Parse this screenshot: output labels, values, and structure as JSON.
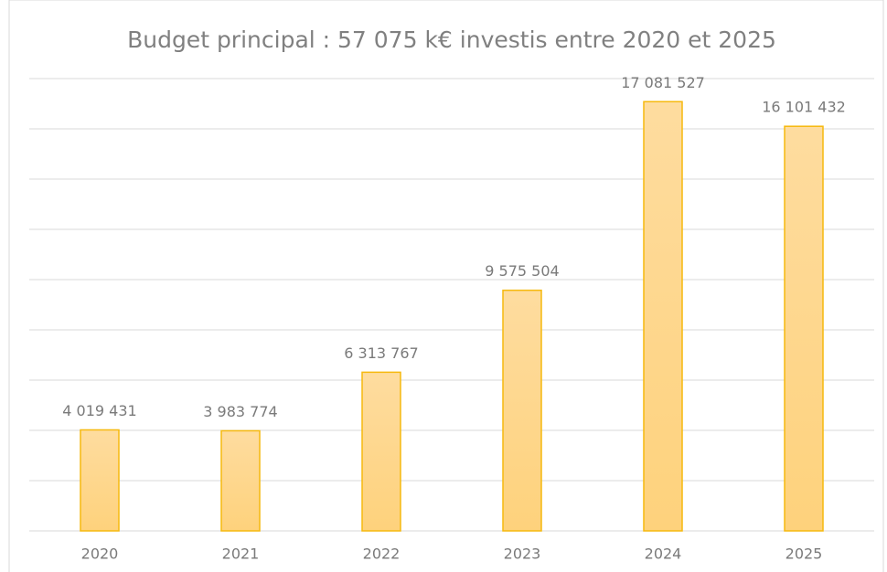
{
  "chart_data": {
    "type": "bar",
    "title": "Budget principal : 57 075 k€ investis entre 2020 et 2025",
    "categories": [
      "2020",
      "2021",
      "2022",
      "2023",
      "2024",
      "2025"
    ],
    "values": [
      4019431,
      3983774,
      6313767,
      9575504,
      17081527,
      16101432
    ],
    "value_labels": [
      "4 019 431",
      "3 983 774",
      "6 313 767",
      "9 575 504",
      "17 081 527",
      "16 101 432"
    ],
    "color": "#fdd68a",
    "ylim": [
      0,
      18000000
    ],
    "yticks": [
      0,
      2000000,
      4000000,
      6000000,
      8000000,
      10000000,
      12000000,
      14000000,
      16000000,
      18000000
    ],
    "grid": true
  }
}
